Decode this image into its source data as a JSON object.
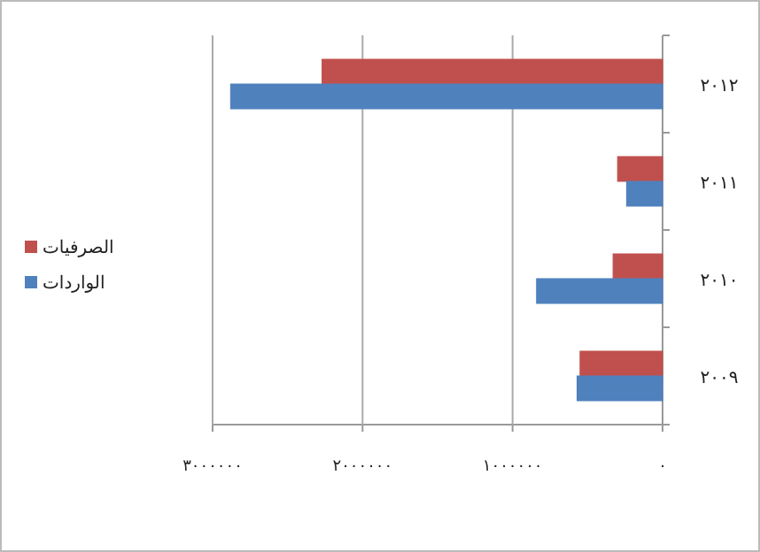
{
  "chart_data": {
    "type": "bar",
    "orientation": "horizontal",
    "categories": [
      "٢٠١٢",
      "٢٠١١",
      "٢٠١٠",
      "٢٠٠٩"
    ],
    "series": [
      {
        "name": "الصرفيات",
        "color": "#c0504d",
        "values": [
          2270000,
          300000,
          330000,
          550000
        ]
      },
      {
        "name": "الواردات",
        "color": "#4f81bd",
        "values": [
          2880000,
          240000,
          840000,
          570000
        ]
      }
    ],
    "xlim": [
      3000000,
      0
    ],
    "xticks": [
      {
        "value": 0,
        "label": "٠"
      },
      {
        "value": 1000000,
        "label": "١٠٠٠٠٠٠"
      },
      {
        "value": 2000000,
        "label": "٢٠٠٠٠٠٠"
      },
      {
        "value": 3000000,
        "label": "٣٠٠٠٠٠٠"
      }
    ],
    "grid": "x",
    "legend": "left"
  }
}
